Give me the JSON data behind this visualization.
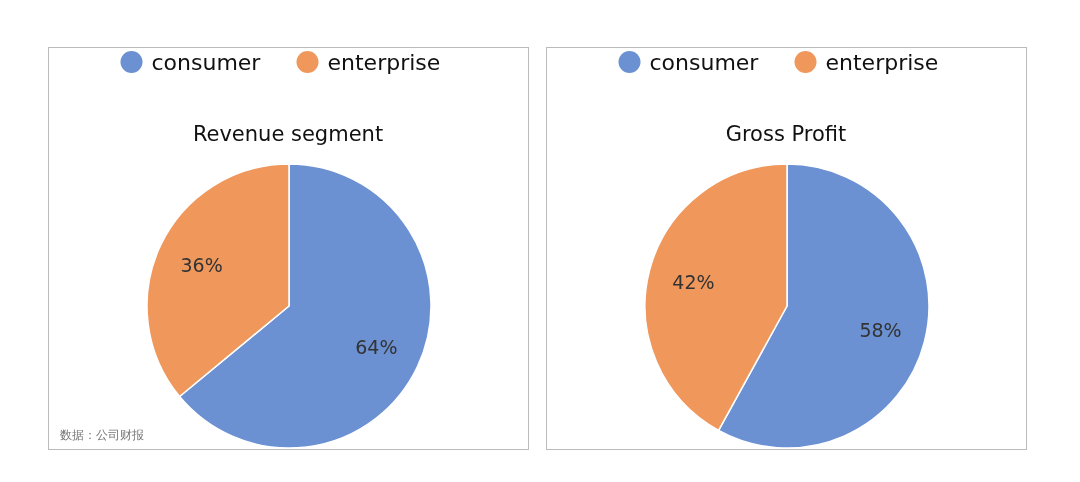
{
  "chart_data": [
    {
      "type": "pie",
      "title": "Revenue segment",
      "categories": [
        "consumer",
        "enterprise"
      ],
      "values": [
        64,
        36
      ],
      "colors": [
        "#6b91d3",
        "#f0985c"
      ],
      "value_labels": [
        "64%",
        "36%"
      ],
      "legend": "top",
      "annotations": [
        "数据：公司财报"
      ]
    },
    {
      "type": "pie",
      "title": "Gross Profit",
      "categories": [
        "consumer",
        "enterprise"
      ],
      "values": [
        58,
        42
      ],
      "colors": [
        "#6b91d3",
        "#f0985c"
      ],
      "value_labels": [
        "58%",
        "42%"
      ],
      "legend": "top"
    }
  ]
}
